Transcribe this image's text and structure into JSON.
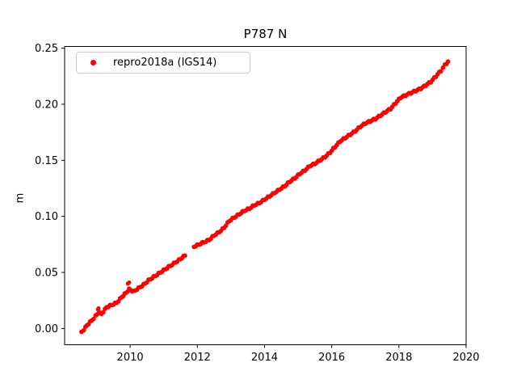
{
  "figure": {
    "title": "P787 N",
    "ylabel": "m",
    "legend": {
      "label": "repro2018a (IGS14)",
      "marker_color": "#ff0000"
    },
    "colors": {
      "series": "#ff0000",
      "axis": "#000000",
      "legend_border": "#cccccc",
      "background": "#ffffff"
    }
  },
  "chart_data": {
    "type": "scatter",
    "title": "P787 N",
    "xlabel": "",
    "ylabel": "m",
    "grid": false,
    "legend_position": "upper left",
    "xlim": [
      2008.05,
      2020.0
    ],
    "ylim": [
      -0.0145,
      0.2515
    ],
    "xticks": {
      "values": [
        2010,
        2012,
        2014,
        2016,
        2018,
        2020
      ],
      "labels": [
        "2010",
        "2012",
        "2014",
        "2016",
        "2018",
        "2020"
      ]
    },
    "yticks": {
      "values": [
        0.0,
        0.05,
        0.1,
        0.15,
        0.2,
        0.25
      ],
      "labels": [
        "0.00",
        "0.05",
        "0.10",
        "0.15",
        "0.20",
        "0.25"
      ]
    },
    "series": [
      {
        "name": "repro2018a (IGS14)",
        "color": "#ff0000",
        "marker": "dot",
        "segments": [
          [
            [
              2008.55,
              -0.003
            ],
            [
              2008.62,
              -0.001
            ],
            [
              2008.72,
              0.003
            ],
            [
              2008.85,
              0.007
            ],
            [
              2008.97,
              0.011
            ],
            [
              2009.05,
              0.014
            ],
            [
              2009.15,
              0.013
            ],
            [
              2009.3,
              0.019
            ],
            [
              2009.45,
              0.021
            ],
            [
              2009.6,
              0.023
            ],
            [
              2009.75,
              0.028
            ],
            [
              2009.88,
              0.032
            ],
            [
              2009.97,
              0.035
            ],
            [
              2010.1,
              0.033
            ],
            [
              2010.25,
              0.036
            ],
            [
              2010.4,
              0.039
            ],
            [
              2010.55,
              0.043
            ],
            [
              2010.7,
              0.046
            ],
            [
              2010.85,
              0.049
            ],
            [
              2011.0,
              0.052
            ],
            [
              2011.15,
              0.055
            ],
            [
              2011.3,
              0.058
            ],
            [
              2011.45,
              0.061
            ],
            [
              2011.63,
              0.065
            ]
          ],
          [
            [
              2011.9,
              0.073
            ],
            [
              2012.05,
              0.075
            ],
            [
              2012.2,
              0.077
            ],
            [
              2012.35,
              0.079
            ],
            [
              2012.5,
              0.083
            ],
            [
              2012.65,
              0.086
            ],
            [
              2012.8,
              0.09
            ],
            [
              2012.95,
              0.096
            ],
            [
              2013.1,
              0.099
            ],
            [
              2013.25,
              0.102
            ],
            [
              2013.4,
              0.105
            ],
            [
              2013.55,
              0.107
            ],
            [
              2013.7,
              0.11
            ],
            [
              2013.85,
              0.112
            ],
            [
              2014.0,
              0.115
            ],
            [
              2014.15,
              0.118
            ],
            [
              2014.3,
              0.121
            ],
            [
              2014.45,
              0.124
            ],
            [
              2014.6,
              0.127
            ],
            [
              2014.75,
              0.131
            ],
            [
              2014.9,
              0.134
            ],
            [
              2015.05,
              0.138
            ],
            [
              2015.2,
              0.141
            ],
            [
              2015.35,
              0.145
            ],
            [
              2015.5,
              0.147
            ],
            [
              2015.65,
              0.15
            ],
            [
              2015.8,
              0.153
            ],
            [
              2015.95,
              0.157
            ],
            [
              2016.1,
              0.162
            ],
            [
              2016.25,
              0.167
            ],
            [
              2016.4,
              0.17
            ],
            [
              2016.55,
              0.173
            ],
            [
              2016.7,
              0.176
            ],
            [
              2016.85,
              0.18
            ],
            [
              2017.0,
              0.183
            ],
            [
              2017.15,
              0.185
            ],
            [
              2017.3,
              0.187
            ],
            [
              2017.45,
              0.19
            ],
            [
              2017.6,
              0.193
            ],
            [
              2017.75,
              0.196
            ],
            [
              2017.9,
              0.201
            ],
            [
              2018.05,
              0.206
            ],
            [
              2018.2,
              0.208
            ],
            [
              2018.35,
              0.21
            ],
            [
              2018.5,
              0.212
            ],
            [
              2018.65,
              0.214
            ],
            [
              2018.8,
              0.217
            ],
            [
              2018.95,
              0.22
            ],
            [
              2019.1,
              0.225
            ],
            [
              2019.25,
              0.23
            ],
            [
              2019.37,
              0.235
            ],
            [
              2019.46,
              0.238
            ]
          ]
        ],
        "extra_points": [
          [
            2009.04,
            0.017
          ],
          [
            2009.06,
            0.018
          ],
          [
            2009.93,
            0.04
          ],
          [
            2009.97,
            0.041
          ]
        ]
      }
    ]
  }
}
